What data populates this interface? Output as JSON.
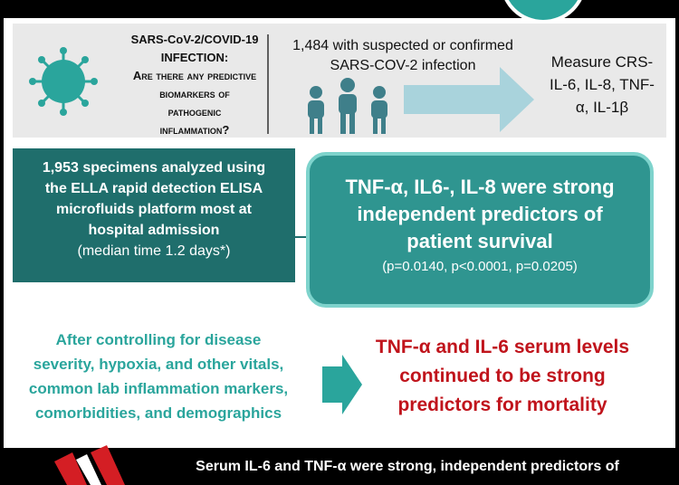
{
  "question": {
    "heading": [
      "SARS-CoV-2/COVID-19",
      "INFECTION:"
    ],
    "body": [
      "Are there any predictive",
      "biomarkers of",
      "pathogenic",
      "inflammation?"
    ]
  },
  "cohort": [
    "1,484 with suspected or confirmed",
    "SARS-COV-2 infection"
  ],
  "measure": [
    "Measure CRS-",
    "IL-6, IL-8, TNF-",
    "α, IL-1β"
  ],
  "specimens": {
    "lines": [
      "1,953 specimens analyzed using",
      "the ELLA rapid detection ELISA",
      "microfluids platform most at",
      "hospital admission"
    ],
    "note": "(median time 1.2 days*)"
  },
  "finding": {
    "lines": [
      "TNF-α, IL6-, IL-8 were strong",
      "independent predictors of",
      "patient survival"
    ],
    "pvalues": "(p=0.0140, p<0.0001, p=0.0205)"
  },
  "adjustment": [
    "After controlling for disease",
    "severity, hypoxia, and other vitals,",
    "common lab inflammation markers,",
    "comorbidities, and demographics"
  ],
  "conclusion": [
    "TNF-α and IL-6 serum levels",
    "continued to be strong",
    "predictors for mortality"
  ],
  "footer": "Serum IL-6 and TNF-α were strong, independent predictors of"
}
